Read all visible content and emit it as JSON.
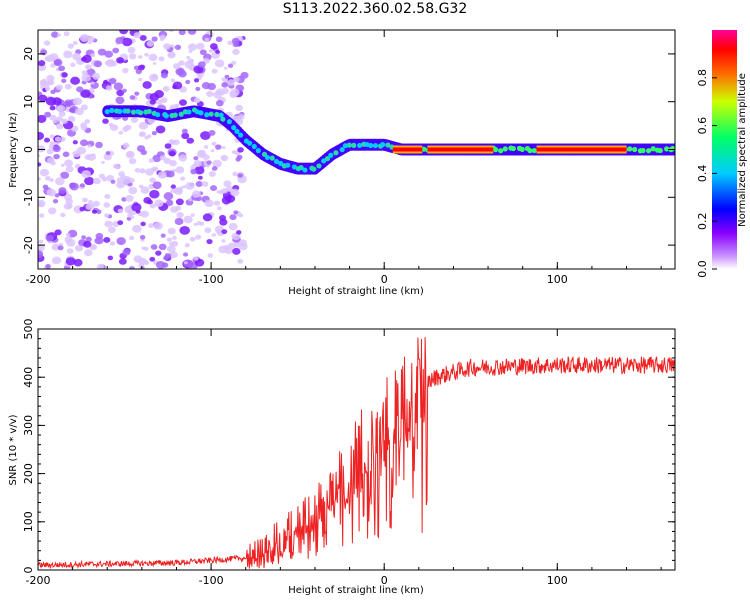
{
  "title": "S113.2022.360.02.58.G32",
  "chart_data": [
    {
      "type": "heatmap",
      "xlabel": "Height of straight line (km)",
      "ylabel": "Frequency (Hz)",
      "xlim": [
        -200,
        168
      ],
      "ylim": [
        -25,
        25
      ],
      "xticks": [
        -200,
        -100,
        0,
        100
      ],
      "yticks": [
        -20,
        -10,
        0,
        10,
        20
      ],
      "colorbar": {
        "label": "Normalized spectral amplitude",
        "range": [
          0.0,
          1.0
        ],
        "ticks": [
          "0.0",
          "0.2",
          "0.4",
          "0.6",
          "0.8"
        ],
        "colormap": "rainbow"
      },
      "ridge": {
        "x": [
          -160,
          -150,
          -140,
          -125,
          -110,
          -95,
          -88,
          -80,
          -70,
          -60,
          -50,
          -40,
          -30,
          -20,
          -10,
          0,
          10,
          20,
          60,
          80,
          100,
          140,
          150,
          160,
          168
        ],
        "y": [
          8,
          8,
          8,
          7,
          8,
          7,
          5,
          2,
          -1,
          -3,
          -4,
          -4,
          -1,
          1,
          1,
          1,
          0,
          0,
          0,
          0,
          0,
          0,
          0,
          0,
          0
        ]
      }
    },
    {
      "type": "line",
      "xlabel": "Height of straight line (km)",
      "ylabel": "SNR (10 * v/v)",
      "xlim": [
        -200,
        168
      ],
      "ylim": [
        0,
        500
      ],
      "xticks": [
        -200,
        -100,
        0,
        100
      ],
      "yticks": [
        0,
        100,
        200,
        300,
        400,
        500
      ],
      "color": "#ee2222",
      "trend": {
        "x": [
          -200,
          -120,
          -100,
          -80,
          -70,
          -60,
          -50,
          -40,
          -30,
          -20,
          -10,
          0,
          10,
          20,
          30,
          50,
          100,
          168
        ],
        "y": [
          10,
          15,
          20,
          25,
          35,
          60,
          80,
          110,
          150,
          200,
          270,
          300,
          330,
          380,
          400,
          420,
          425,
          425
        ]
      }
    }
  ]
}
